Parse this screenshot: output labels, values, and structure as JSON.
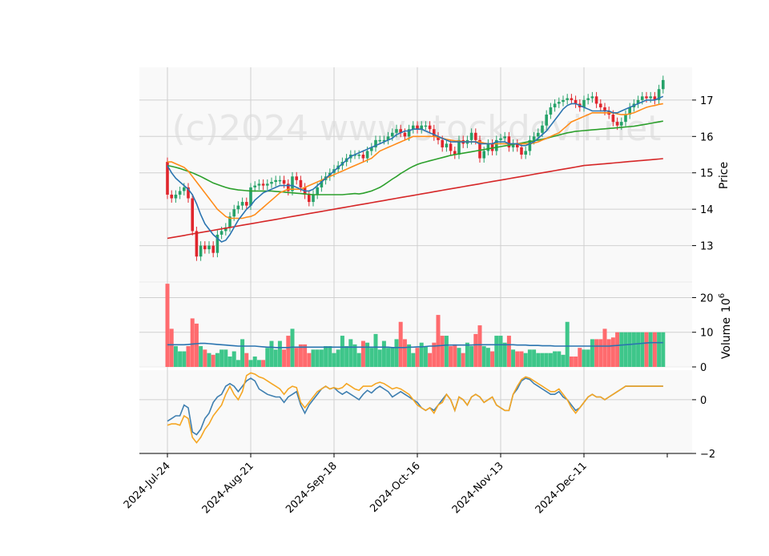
{
  "chart_data": {
    "type": "candlestick",
    "watermark": "(c)2024 www.stockdevil.net",
    "colors": {
      "up": "#26a269",
      "up_fill": "#3ec68a",
      "down": "#e0262d",
      "down_fill": "#ff6b6e",
      "ma_short": "#2a74b0",
      "ma_mid": "#ff8c1a",
      "ma_long": "#2ca02c",
      "ma_200": "#d62728",
      "osc_a": "#3f7fb0",
      "osc_b": "#f5a623",
      "vol_ma": "#2a74b0"
    },
    "x_tick_labels": [
      "2024-Jul-24",
      "2024-Aug-21",
      "2024-Sep-18",
      "2024-Oct-16",
      "2024-Nov-13",
      "2024-Dec-11"
    ],
    "x_tick_index": [
      0,
      20,
      40,
      60,
      80,
      100
    ],
    "price_panel": {
      "ylabel": "Price",
      "yticks": [
        13,
        14,
        15,
        16,
        17
      ],
      "ylim": [
        12.0,
        17.9
      ],
      "closes": [
        14.4,
        14.3,
        14.4,
        14.5,
        14.6,
        14.3,
        13.4,
        12.7,
        13.0,
        12.9,
        13.0,
        12.8,
        13.3,
        13.4,
        13.5,
        13.8,
        14.0,
        14.1,
        14.2,
        14.1,
        14.6,
        14.65,
        14.7,
        14.65,
        14.7,
        14.75,
        14.8,
        14.8,
        14.7,
        14.5,
        14.9,
        14.8,
        14.6,
        14.4,
        14.2,
        14.4,
        14.6,
        14.8,
        14.9,
        15.0,
        15.1,
        15.2,
        15.3,
        15.4,
        15.5,
        15.5,
        15.5,
        15.4,
        15.6,
        15.7,
        15.9,
        15.9,
        15.9,
        16.0,
        16.1,
        16.2,
        16.1,
        16.0,
        16.2,
        16.3,
        16.2,
        16.3,
        16.3,
        16.2,
        16.0,
        15.9,
        15.7,
        15.8,
        15.6,
        15.5,
        15.9,
        15.8,
        15.9,
        16.1,
        15.9,
        15.4,
        15.6,
        15.8,
        15.6,
        15.9,
        15.95,
        16.0,
        15.7,
        15.8,
        15.7,
        15.5,
        15.6,
        15.9,
        16.0,
        16.1,
        16.3,
        16.6,
        16.8,
        16.9,
        16.95,
        17.0,
        17.05,
        17.0,
        16.9,
        16.8,
        17.0,
        17.05,
        17.1,
        16.9,
        16.8,
        16.7,
        16.6,
        16.4,
        16.3,
        16.4,
        16.6,
        16.8,
        16.9,
        17.0,
        17.1,
        17.05,
        17.1,
        17.0,
        17.3,
        17.55
      ],
      "ma_short": [
        15.2,
        15.0,
        14.85,
        14.75,
        14.65,
        14.55,
        14.4,
        14.15,
        13.85,
        13.6,
        13.45,
        13.3,
        13.2,
        13.1,
        13.15,
        13.3,
        13.5,
        13.7,
        13.85,
        14.0,
        14.1,
        14.25,
        14.35,
        14.45,
        14.5,
        14.55,
        14.6,
        14.65,
        14.65,
        14.65,
        14.65,
        14.6,
        14.55,
        14.5,
        14.5,
        14.55,
        14.65,
        14.75,
        14.85,
        14.95,
        15.05,
        15.15,
        15.25,
        15.35,
        15.45,
        15.5,
        15.55,
        15.6,
        15.65,
        15.7,
        15.75,
        15.8,
        15.85,
        15.9,
        15.95,
        16.05,
        16.1,
        16.15,
        16.15,
        16.2,
        16.2,
        16.2,
        16.15,
        16.1,
        16.05,
        16.0,
        15.95,
        15.9,
        15.85,
        15.85,
        15.85,
        15.85,
        15.85,
        15.85,
        15.85,
        15.8,
        15.8,
        15.8,
        15.8,
        15.85,
        15.85,
        15.85,
        15.8,
        15.8,
        15.8,
        15.75,
        15.75,
        15.8,
        15.85,
        15.95,
        16.05,
        16.15,
        16.3,
        16.45,
        16.6,
        16.75,
        16.85,
        16.9,
        16.9,
        16.85,
        16.8,
        16.75,
        16.7,
        16.7,
        16.7,
        16.7,
        16.7,
        16.65,
        16.65,
        16.7,
        16.75,
        16.8,
        16.85,
        16.9,
        16.95,
        17.0,
        17.0,
        17.0,
        17.05,
        17.1
      ],
      "ma_mid": [
        15.3,
        15.3,
        15.25,
        15.2,
        15.15,
        15.05,
        14.9,
        14.75,
        14.6,
        14.45,
        14.3,
        14.15,
        14.0,
        13.9,
        13.8,
        13.75,
        13.75,
        13.75,
        13.75,
        13.78,
        13.8,
        13.85,
        13.95,
        14.05,
        14.15,
        14.25,
        14.35,
        14.45,
        14.5,
        14.55,
        14.55,
        14.55,
        14.55,
        14.6,
        14.65,
        14.7,
        14.75,
        14.8,
        14.85,
        14.9,
        14.95,
        15.0,
        15.05,
        15.1,
        15.15,
        15.2,
        15.25,
        15.3,
        15.35,
        15.4,
        15.5,
        15.6,
        15.65,
        15.7,
        15.75,
        15.8,
        15.85,
        15.9,
        15.95,
        16.0,
        16.0,
        16.0,
        16.0,
        16.0,
        16.0,
        15.98,
        15.95,
        15.92,
        15.9,
        15.88,
        15.87,
        15.86,
        15.85,
        15.85,
        15.85,
        15.85,
        15.82,
        15.8,
        15.8,
        15.8,
        15.8,
        15.8,
        15.8,
        15.8,
        15.8,
        15.8,
        15.8,
        15.8,
        15.82,
        15.85,
        15.9,
        15.95,
        16.0,
        16.05,
        16.1,
        16.2,
        16.3,
        16.4,
        16.45,
        16.5,
        16.55,
        16.6,
        16.65,
        16.65,
        16.65,
        16.65,
        16.65,
        16.65,
        16.62,
        16.6,
        16.6,
        16.62,
        16.65,
        16.7,
        16.75,
        16.8,
        16.83,
        16.85,
        16.88,
        16.9
      ],
      "ma_long": [
        15.2,
        15.18,
        15.15,
        15.12,
        15.08,
        15.04,
        15.0,
        14.95,
        14.9,
        14.84,
        14.78,
        14.72,
        14.68,
        14.64,
        14.6,
        14.57,
        14.55,
        14.53,
        14.52,
        14.51,
        14.5,
        14.5,
        14.5,
        14.5,
        14.5,
        14.5,
        14.49,
        14.48,
        14.47,
        14.46,
        14.45,
        14.44,
        14.43,
        14.42,
        14.41,
        14.4,
        14.4,
        14.4,
        14.4,
        14.4,
        14.4,
        14.4,
        14.4,
        14.41,
        14.42,
        14.43,
        14.42,
        14.44,
        14.47,
        14.5,
        14.55,
        14.6,
        14.67,
        14.75,
        14.83,
        14.9,
        14.98,
        15.05,
        15.12,
        15.18,
        15.23,
        15.27,
        15.3,
        15.33,
        15.36,
        15.39,
        15.42,
        15.45,
        15.48,
        15.5,
        15.52,
        15.54,
        15.56,
        15.58,
        15.6,
        15.62,
        15.64,
        15.66,
        15.68,
        15.7,
        15.72,
        15.74,
        15.76,
        15.78,
        15.8,
        15.82,
        15.84,
        15.86,
        15.88,
        15.9,
        15.92,
        15.95,
        15.98,
        16.01,
        16.04,
        16.07,
        16.1,
        16.12,
        16.14,
        16.15,
        16.16,
        16.17,
        16.18,
        16.19,
        16.2,
        16.21,
        16.22,
        16.23,
        16.24,
        16.25,
        16.26,
        16.27,
        16.28,
        16.3,
        16.32,
        16.34,
        16.36,
        16.38,
        16.4,
        16.42
      ],
      "ma_200": [
        13.2,
        13.22,
        13.24,
        13.26,
        13.28,
        13.3,
        13.32,
        13.34,
        13.36,
        13.38,
        13.4,
        13.42,
        13.44,
        13.46,
        13.48,
        13.5,
        13.52,
        13.54,
        13.56,
        13.58,
        13.6,
        13.62,
        13.64,
        13.66,
        13.68,
        13.7,
        13.72,
        13.74,
        13.76,
        13.78,
        13.8,
        13.82,
        13.84,
        13.86,
        13.88,
        13.9,
        13.92,
        13.94,
        13.96,
        13.98,
        14.0,
        14.02,
        14.04,
        14.06,
        14.08,
        14.1,
        14.12,
        14.14,
        14.16,
        14.18,
        14.2,
        14.22,
        14.24,
        14.26,
        14.28,
        14.3,
        14.32,
        14.34,
        14.36,
        14.38,
        14.4,
        14.42,
        14.44,
        14.46,
        14.48,
        14.5,
        14.52,
        14.54,
        14.56,
        14.58,
        14.6,
        14.62,
        14.64,
        14.66,
        14.68,
        14.7,
        14.72,
        14.74,
        14.76,
        14.78,
        14.8,
        14.82,
        14.84,
        14.86,
        14.88,
        14.9,
        14.92,
        14.94,
        14.96,
        14.98,
        15.0,
        15.02,
        15.04,
        15.06,
        15.08,
        15.1,
        15.12,
        15.14,
        15.16,
        15.18,
        15.2,
        15.21,
        15.22,
        15.23,
        15.24,
        15.25,
        15.26,
        15.27,
        15.28,
        15.29,
        15.3,
        15.31,
        15.32,
        15.33,
        15.34,
        15.35,
        15.36,
        15.37,
        15.38,
        15.39
      ]
    },
    "volume_panel": {
      "ylabel": "Volume  10^6",
      "ylabel_text": "Volume",
      "ylabel_exp": "10",
      "ylabel_pow": "6",
      "yticks": [
        0,
        10,
        20
      ],
      "ylim": [
        0,
        24.5
      ],
      "values": [
        24,
        11,
        6,
        4.5,
        4.5,
        6,
        14,
        12.5,
        6,
        5,
        4,
        3.5,
        4,
        5,
        5,
        3,
        4.5,
        2,
        8,
        4,
        2,
        3,
        2,
        2,
        5.5,
        7.5,
        5,
        7.5,
        5,
        9,
        11,
        5.5,
        6.5,
        6.5,
        4,
        5,
        5,
        5,
        6,
        6,
        4,
        5,
        9,
        6,
        8,
        6.5,
        4,
        7.5,
        7,
        5.5,
        9.5,
        5,
        7.5,
        5.5,
        5.5,
        8,
        13,
        8,
        6.5,
        4,
        5.5,
        7,
        6,
        4,
        7,
        15,
        9,
        9,
        6,
        6.5,
        5.5,
        4,
        7,
        6,
        9.5,
        12,
        6,
        5.5,
        4.5,
        9,
        9,
        7,
        9,
        5,
        4.5,
        4.5,
        4,
        5,
        5,
        4,
        4,
        4,
        4,
        4.5,
        4.5,
        3.5,
        13,
        3,
        3,
        5.5,
        5,
        5,
        8,
        8,
        8,
        11,
        8,
        8.5,
        10,
        10,
        10,
        10,
        10,
        10,
        10,
        10,
        10,
        10,
        10,
        10
      ],
      "vol_ma": [
        6.4,
        6.4,
        6.4,
        6.4,
        6.4,
        6.5,
        6.6,
        6.7,
        6.8,
        6.8,
        6.7,
        6.6,
        6.5,
        6.4,
        6.3,
        6.2,
        6.1,
        6.0,
        6.0,
        6.0,
        6.0,
        6.0,
        5.9,
        5.8,
        5.7,
        5.7,
        5.6,
        5.6,
        5.6,
        5.6,
        5.7,
        5.7,
        5.7,
        5.7,
        5.7,
        5.7,
        5.7,
        5.7,
        5.7,
        5.7,
        5.7,
        5.7,
        5.7,
        5.7,
        5.7,
        5.7,
        5.7,
        5.7,
        5.7,
        5.7,
        5.7,
        5.7,
        5.7,
        5.7,
        5.6,
        5.6,
        5.6,
        5.6,
        5.7,
        5.7,
        5.8,
        5.8,
        5.9,
        6.0,
        6.0,
        6.1,
        6.2,
        6.3,
        6.3,
        6.3,
        6.3,
        6.3,
        6.3,
        6.3,
        6.4,
        6.4,
        6.4,
        6.4,
        6.4,
        6.4,
        6.4,
        6.4,
        6.4,
        6.4,
        6.3,
        6.3,
        6.3,
        6.2,
        6.2,
        6.2,
        6.1,
        6.1,
        6.1,
        6.0,
        6.0,
        6.0,
        6.0,
        6.0,
        6.0,
        6.0,
        6.0,
        6.0,
        6.0,
        6.0,
        6.0,
        6.0,
        6.0,
        6.1,
        6.2,
        6.3,
        6.4,
        6.5,
        6.6,
        6.7,
        6.8,
        6.9,
        7.0,
        7.0,
        7.0,
        7.0
      ]
    },
    "oscillator_panel": {
      "yticks": [
        -2,
        0
      ],
      "ylim": [
        -2.0,
        1.1
      ],
      "line_a": [
        -0.8,
        -0.7,
        -0.6,
        -0.6,
        -0.2,
        -0.3,
        -1.2,
        -1.3,
        -1.1,
        -0.7,
        -0.5,
        -0.1,
        0.1,
        0.2,
        0.5,
        0.6,
        0.5,
        0.3,
        0.5,
        0.7,
        0.8,
        0.7,
        0.4,
        0.3,
        0.2,
        0.15,
        0.1,
        0.1,
        -0.1,
        0.1,
        0.2,
        0.3,
        -0.2,
        -0.5,
        -0.2,
        0.0,
        0.2,
        0.4,
        0.5,
        0.4,
        0.45,
        0.3,
        0.2,
        0.3,
        0.2,
        0.1,
        0.0,
        0.2,
        0.35,
        0.25,
        0.4,
        0.5,
        0.4,
        0.3,
        0.1,
        0.2,
        0.3,
        0.2,
        0.1,
        0.0,
        -0.1,
        -0.3,
        -0.4,
        -0.3,
        -0.4,
        -0.2,
        0.0,
        0.2,
        0.0,
        -0.4,
        0.1,
        0.0,
        -0.2,
        0.1,
        0.2,
        0.1,
        -0.1,
        0.0,
        0.1,
        -0.2,
        -0.3,
        -0.4,
        -0.4,
        0.2,
        0.4,
        0.7,
        0.8,
        0.75,
        0.6,
        0.5,
        0.4,
        0.3,
        0.2,
        0.2,
        0.3,
        0.1,
        0.0,
        -0.2,
        -0.4,
        -0.3,
        -0.1,
        0.1,
        0.2,
        0.1,
        0.1,
        0.0,
        0.1,
        0.2,
        0.3,
        0.4,
        0.5,
        0.5,
        0.5,
        0.5,
        0.5,
        0.5,
        0.5,
        0.5,
        0.5,
        0.5
      ],
      "line_b": [
        -0.95,
        -0.9,
        -0.9,
        -0.95,
        -0.6,
        -0.7,
        -1.4,
        -1.6,
        -1.4,
        -1.1,
        -0.9,
        -0.6,
        -0.4,
        -0.2,
        0.2,
        0.5,
        0.2,
        0.0,
        0.3,
        0.9,
        1.0,
        0.95,
        0.85,
        0.8,
        0.7,
        0.6,
        0.5,
        0.4,
        0.2,
        0.4,
        0.5,
        0.45,
        -0.1,
        -0.3,
        -0.1,
        0.1,
        0.3,
        0.4,
        0.5,
        0.4,
        0.45,
        0.4,
        0.45,
        0.6,
        0.5,
        0.4,
        0.35,
        0.5,
        0.5,
        0.5,
        0.6,
        0.65,
        0.6,
        0.5,
        0.4,
        0.45,
        0.4,
        0.3,
        0.2,
        0.0,
        -0.2,
        -0.3,
        -0.4,
        -0.3,
        -0.5,
        -0.2,
        -0.1,
        0.2,
        0.0,
        -0.4,
        0.1,
        0.0,
        -0.2,
        0.1,
        0.2,
        0.1,
        -0.1,
        0.0,
        0.1,
        -0.2,
        -0.3,
        -0.4,
        -0.4,
        0.2,
        0.5,
        0.75,
        0.85,
        0.8,
        0.7,
        0.6,
        0.5,
        0.4,
        0.3,
        0.3,
        0.4,
        0.2,
        0.0,
        -0.3,
        -0.5,
        -0.3,
        -0.1,
        0.1,
        0.2,
        0.1,
        0.1,
        0.0,
        0.1,
        0.2,
        0.3,
        0.4,
        0.5,
        0.5,
        0.5,
        0.5,
        0.5,
        0.5,
        0.5,
        0.5,
        0.5,
        0.5
      ]
    }
  }
}
